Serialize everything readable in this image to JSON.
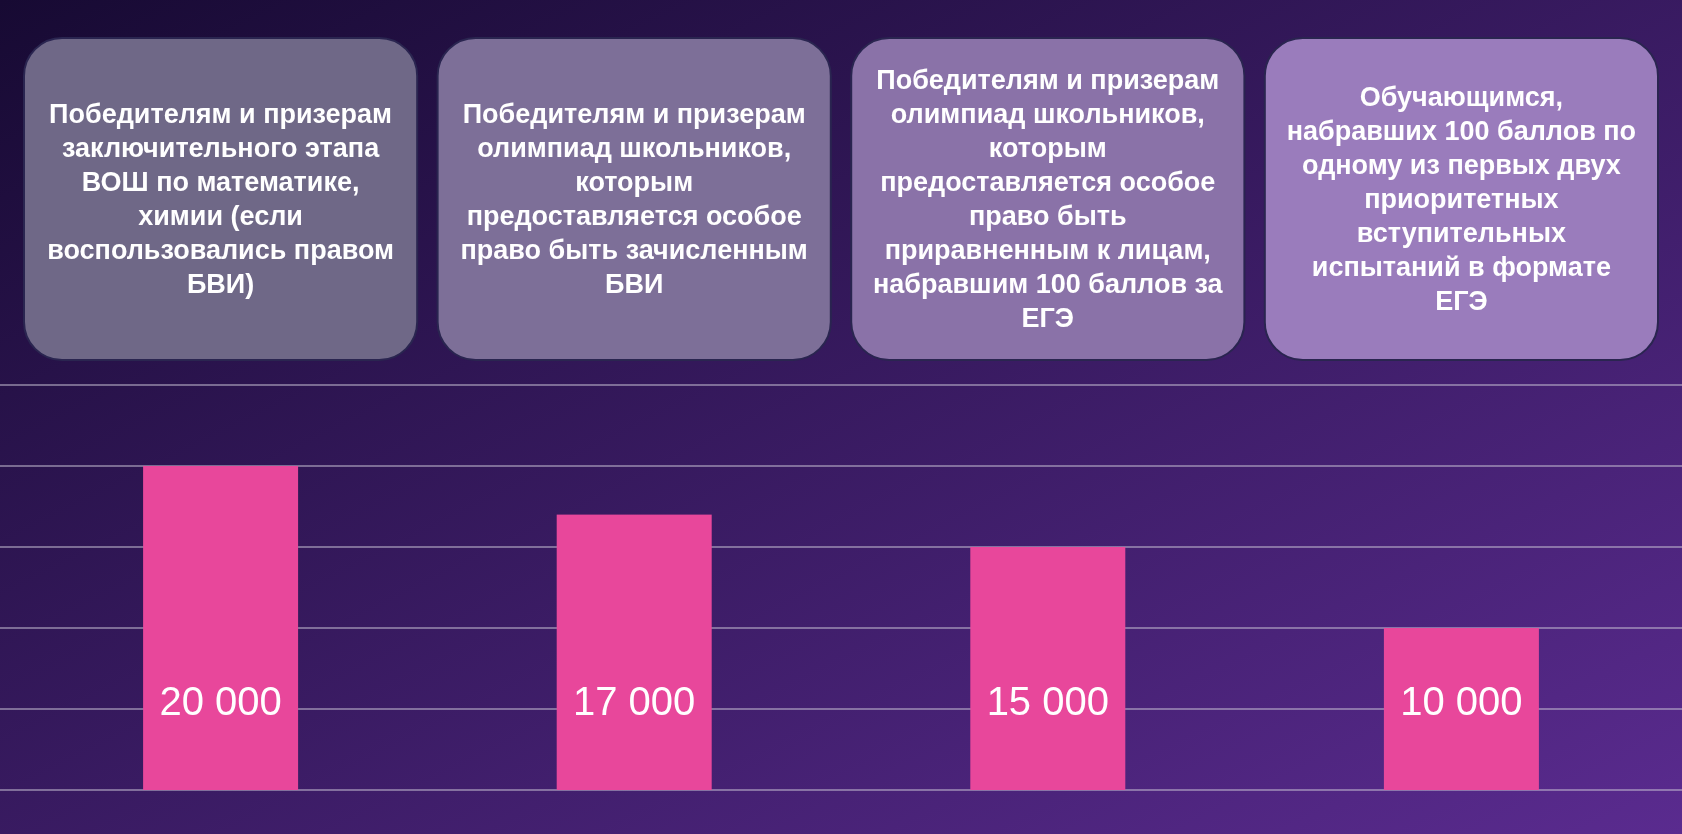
{
  "chart_data": {
    "type": "bar",
    "categories": [
      "Победителям и призерам заключительного этапа ВОШ по математике, химии (если воспользовались правом БВИ)",
      "Победителям и призерам олимпиад школьников, которым предоставляется особое право быть зачисленным БВИ",
      "Победителям и призерам олимпиад школьников, которым предоставляется особое право быть приравненным к лицам, набравшим 100 баллов за ЕГЭ",
      "Обучающимся, набравших 100 баллов по одному из первых двух приоритетных вступительных испытаний в формате ЕГЭ"
    ],
    "values": [
      20000,
      17000,
      15000,
      10000
    ],
    "value_labels": [
      "20 000",
      "17 000",
      "15 000",
      "10 000"
    ],
    "color": "#e8479b",
    "ylim": [
      0,
      25000
    ],
    "yticks": [
      {
        "value": 0,
        "label": null
      },
      {
        "value": 5000,
        "label": null
      },
      {
        "value": 10000,
        "label": null
      },
      {
        "value": 15000,
        "label": null
      },
      {
        "value": 20000,
        "label": null
      },
      {
        "value": 25000,
        "label": null
      }
    ],
    "grid": "y",
    "tick_labels": "x"
  }
}
